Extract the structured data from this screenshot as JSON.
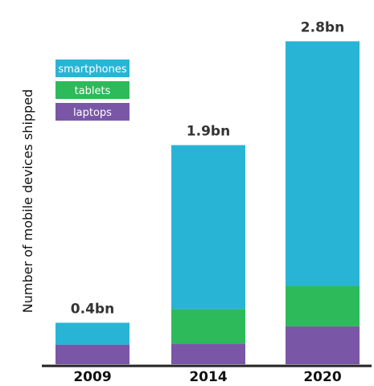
{
  "chart_data": {
    "type": "bar",
    "stacked": true,
    "categories": [
      "2009",
      "2014",
      "2020"
    ],
    "totals_text": [
      "0.4bn",
      "1.9bn",
      "2.8bn"
    ],
    "series": [
      {
        "name": "laptops",
        "color": "#7a57a6",
        "values": [
          0.17,
          0.18,
          0.33
        ]
      },
      {
        "name": "tablets",
        "color": "#2dba5a",
        "values": [
          0.0,
          0.3,
          0.35
        ]
      },
      {
        "name": "smartphones",
        "color": "#28b5d5",
        "values": [
          0.19,
          1.42,
          2.12
        ]
      }
    ],
    "legend_order": [
      "smartphones",
      "tablets",
      "laptops"
    ],
    "legend_position": "top-left",
    "ylabel": "Number of mobile devices shipped",
    "xlabel": "",
    "ylim": [
      0,
      2.9
    ],
    "grid": false
  }
}
